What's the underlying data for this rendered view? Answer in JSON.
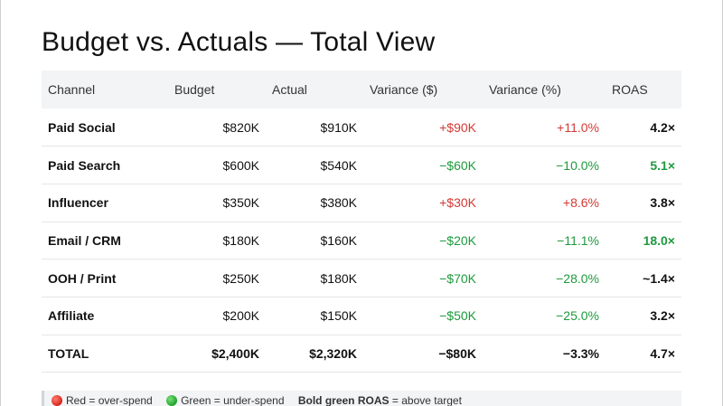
{
  "title": "Budget vs. Actuals — Total View",
  "colors": {
    "over_spend": "#d23a35",
    "under_spend": "#1e9a3e",
    "header_bg": "#f2f4f5"
  },
  "table": {
    "headers": [
      "Channel",
      "Budget",
      "Actual",
      "Variance ($)",
      "Variance (%)",
      "ROAS"
    ],
    "rows": [
      {
        "channel": "Paid Social",
        "budget": "$820K",
        "actual": "$910K",
        "variance_usd": "+$90K",
        "variance_pct": "+11.0%",
        "roas": "4.2×",
        "status": "over",
        "roas_above_target": false
      },
      {
        "channel": "Paid Search",
        "budget": "$600K",
        "actual": "$540K",
        "variance_usd": "−$60K",
        "variance_pct": "−10.0%",
        "roas": "5.1×",
        "status": "under",
        "roas_above_target": true
      },
      {
        "channel": "Influencer",
        "budget": "$350K",
        "actual": "$380K",
        "variance_usd": "+$30K",
        "variance_pct": "+8.6%",
        "roas": "3.8×",
        "status": "over",
        "roas_above_target": false
      },
      {
        "channel": "Email / CRM",
        "budget": "$180K",
        "actual": "$160K",
        "variance_usd": "−$20K",
        "variance_pct": "−11.1%",
        "roas": "18.0×",
        "status": "under",
        "roas_above_target": true
      },
      {
        "channel": "OOH / Print",
        "budget": "$250K",
        "actual": "$180K",
        "variance_usd": "−$70K",
        "variance_pct": "−28.0%",
        "roas": "~1.4×",
        "status": "under",
        "roas_above_target": false
      },
      {
        "channel": "Affiliate",
        "budget": "$200K",
        "actual": "$150K",
        "variance_usd": "−$50K",
        "variance_pct": "−25.0%",
        "roas": "3.2×",
        "status": "under",
        "roas_above_target": false
      }
    ],
    "total": {
      "channel": "TOTAL",
      "budget": "$2,400K",
      "actual": "$2,320K",
      "variance_usd": "−$80K",
      "variance_pct": "−3.3%",
      "roas": "4.7×"
    }
  },
  "legend": {
    "red_label": "Red = over-spend",
    "green_label": "Green = under-spend",
    "bold_label": "Bold green ROAS",
    "bold_suffix": "= above target"
  }
}
